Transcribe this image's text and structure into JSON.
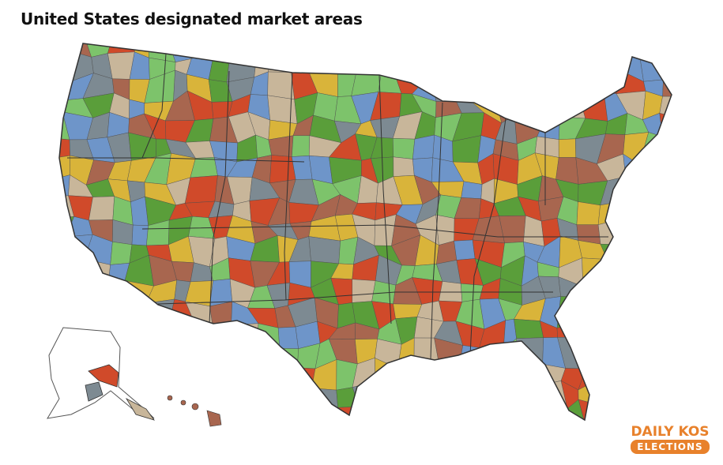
{
  "title": "United States designated market areas",
  "logo": {
    "line1": "DAILY KOS",
    "line2": "ELECTIONS"
  }
}
